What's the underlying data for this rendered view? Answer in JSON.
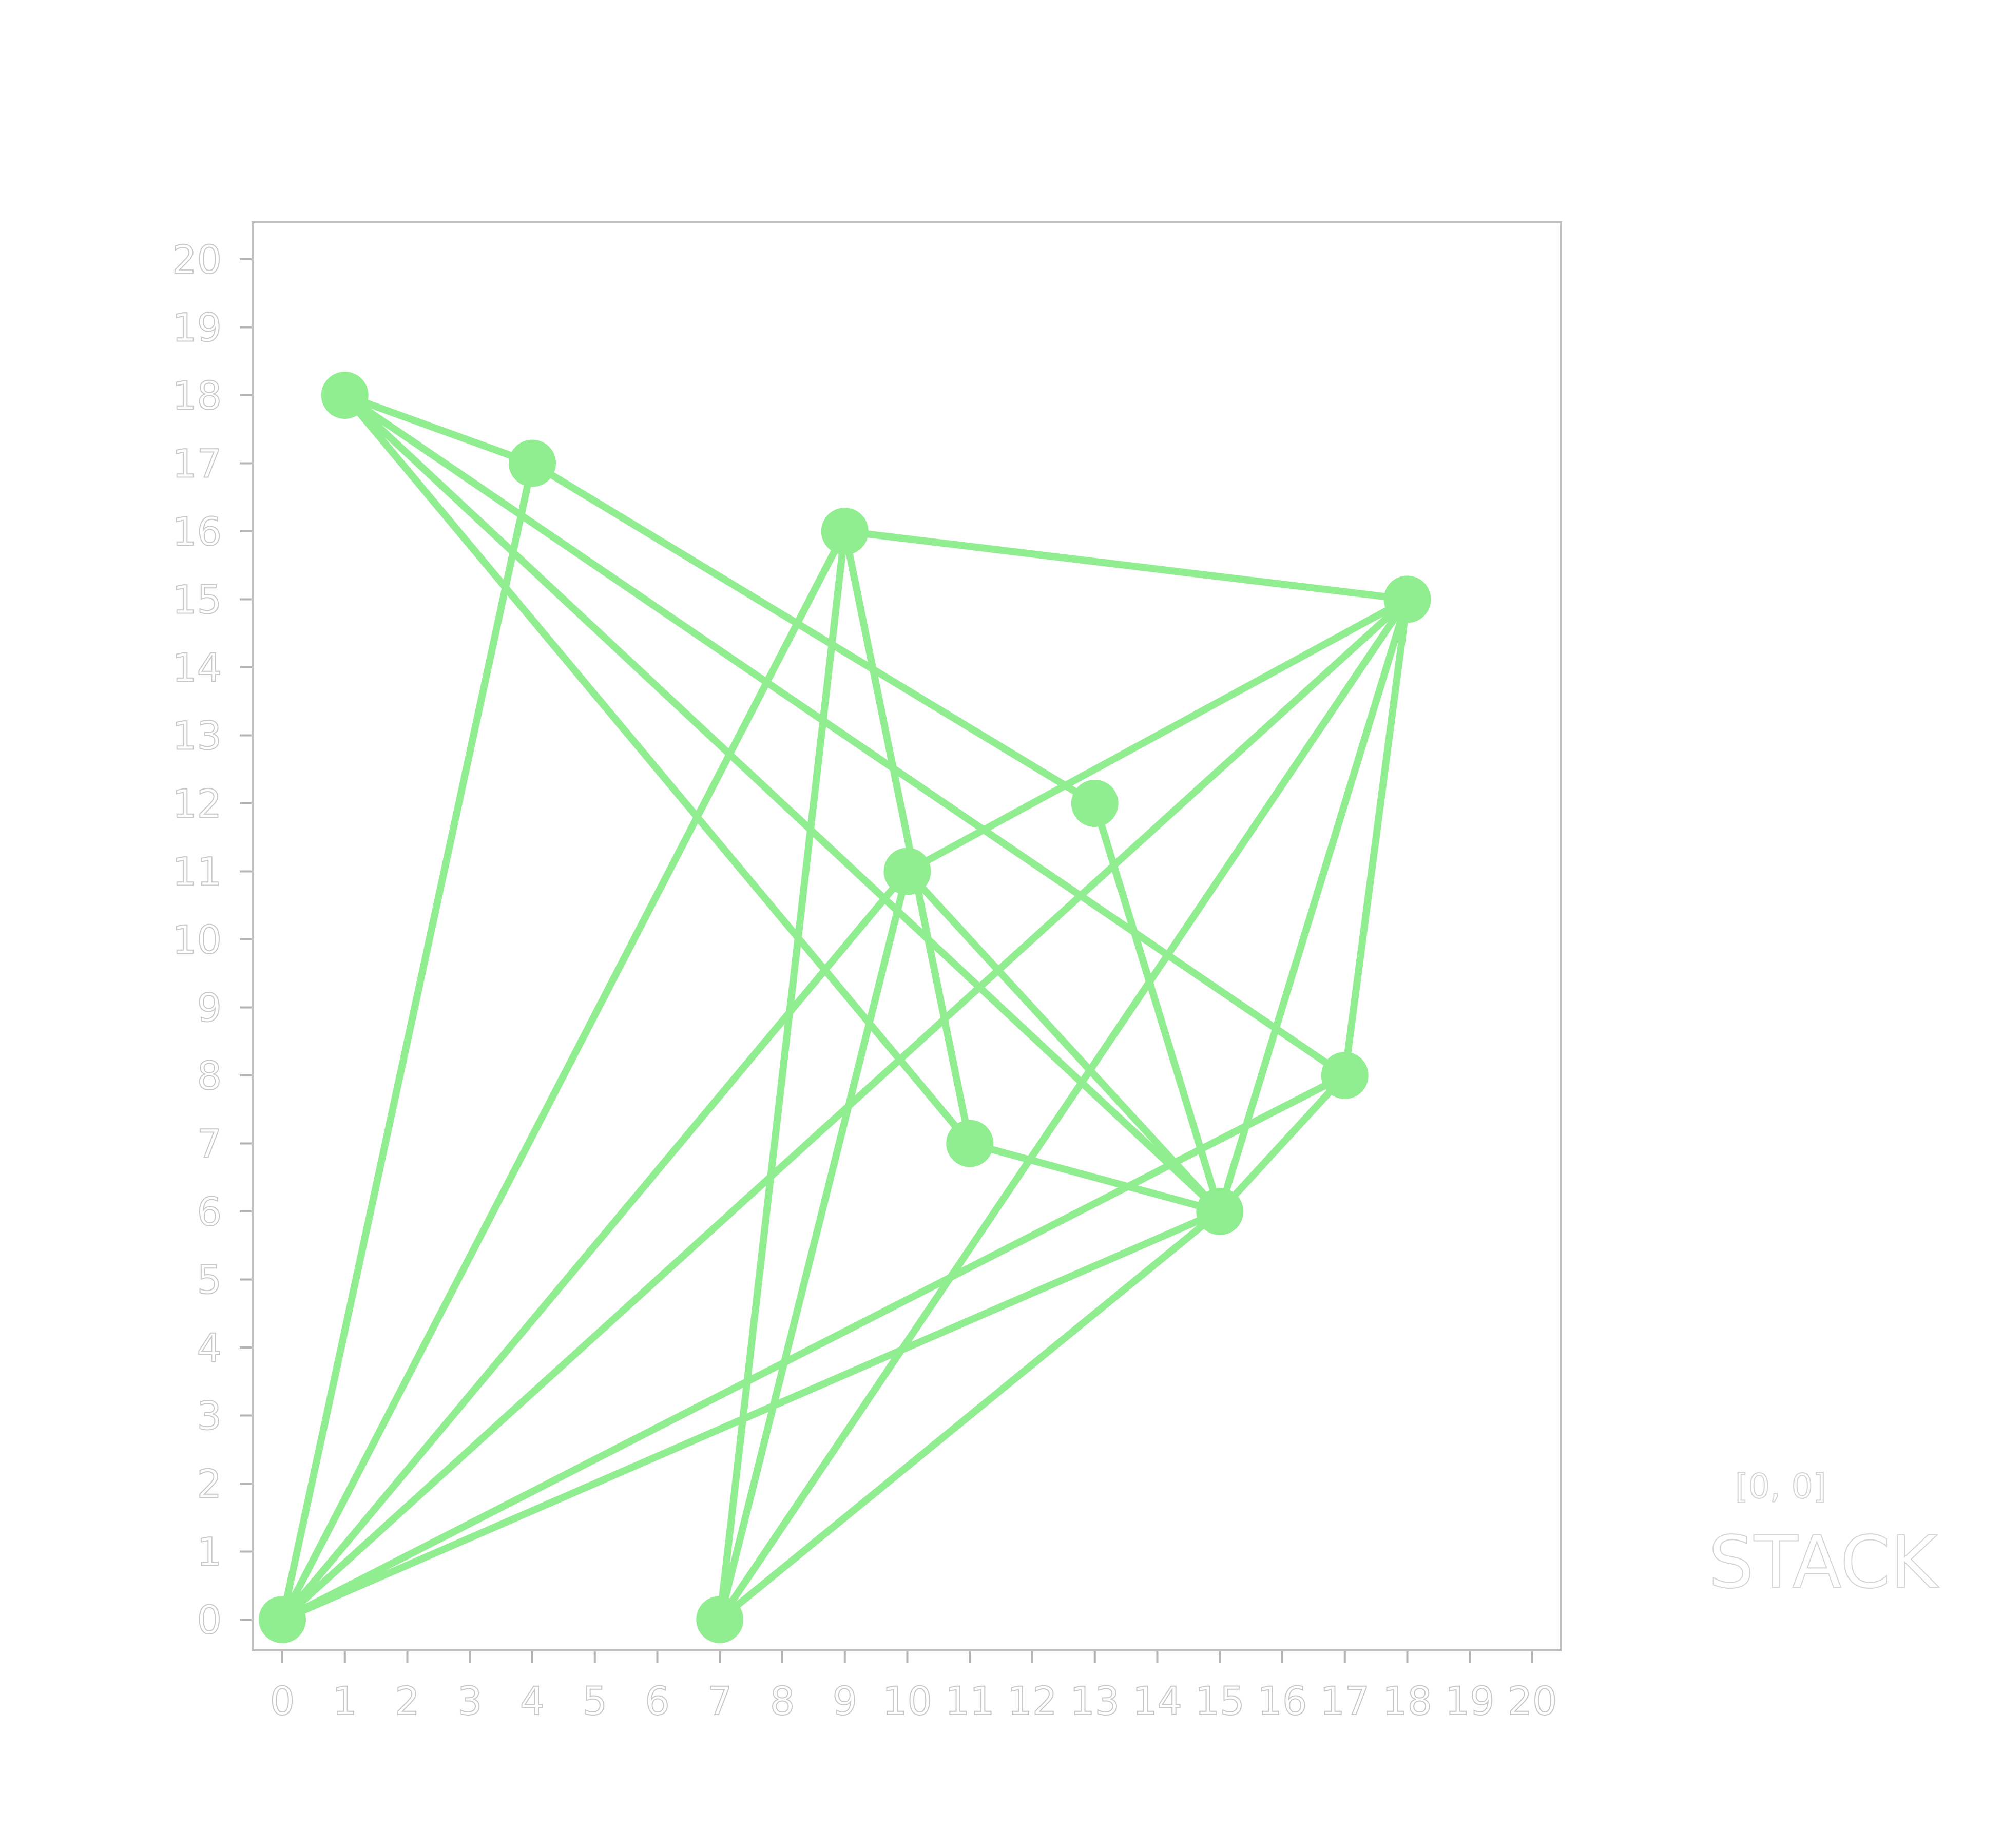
{
  "chart_data": {
    "type": "graph",
    "grid": false,
    "xlim": [
      0,
      20
    ],
    "ylim": [
      0,
      20
    ],
    "x_ticks": [
      "0",
      "1",
      "2",
      "3",
      "4",
      "5",
      "6",
      "7",
      "8",
      "9",
      "10",
      "11",
      "12",
      "13",
      "14",
      "15",
      "16",
      "17",
      "18",
      "19",
      "20"
    ],
    "y_ticks": [
      "0",
      "1",
      "2",
      "3",
      "4",
      "5",
      "6",
      "7",
      "8",
      "9",
      "10",
      "11",
      "12",
      "13",
      "14",
      "15",
      "16",
      "17",
      "18",
      "19",
      "20"
    ],
    "nodes": [
      {
        "id": "n0",
        "x": 0,
        "y": 0
      },
      {
        "id": "n1",
        "x": 1,
        "y": 18
      },
      {
        "id": "n2",
        "x": 4,
        "y": 17
      },
      {
        "id": "n3",
        "x": 7,
        "y": 0
      },
      {
        "id": "n4",
        "x": 9,
        "y": 16
      },
      {
        "id": "n5",
        "x": 10,
        "y": 11
      },
      {
        "id": "n6",
        "x": 11,
        "y": 7
      },
      {
        "id": "n7",
        "x": 13,
        "y": 12
      },
      {
        "id": "n8",
        "x": 15,
        "y": 6
      },
      {
        "id": "n9",
        "x": 17,
        "y": 8
      },
      {
        "id": "n10",
        "x": 18,
        "y": 15
      }
    ],
    "edges": [
      [
        "n1",
        "n2"
      ],
      [
        "n1",
        "n6"
      ],
      [
        "n1",
        "n8"
      ],
      [
        "n1",
        "n9"
      ],
      [
        "n2",
        "n0"
      ],
      [
        "n2",
        "n7"
      ],
      [
        "n4",
        "n10"
      ],
      [
        "n4",
        "n0"
      ],
      [
        "n4",
        "n3"
      ],
      [
        "n4",
        "n6"
      ],
      [
        "n10",
        "n5"
      ],
      [
        "n10",
        "n0"
      ],
      [
        "n10",
        "n3"
      ],
      [
        "n10",
        "n8"
      ],
      [
        "n10",
        "n9"
      ],
      [
        "n5",
        "n0"
      ],
      [
        "n5",
        "n3"
      ],
      [
        "n5",
        "n8"
      ],
      [
        "n7",
        "n8"
      ],
      [
        "n6",
        "n8"
      ],
      [
        "n9",
        "n0"
      ],
      [
        "n9",
        "n8"
      ],
      [
        "n8",
        "n0"
      ],
      [
        "n8",
        "n3"
      ]
    ],
    "colors": {
      "node": "#90ee90",
      "edge": "#90ee90",
      "axis": "#b4b4b4",
      "tick_text_outline": "#c8c8c8"
    }
  },
  "legend": {
    "coords": "[0, 0]",
    "label": "STACK"
  }
}
